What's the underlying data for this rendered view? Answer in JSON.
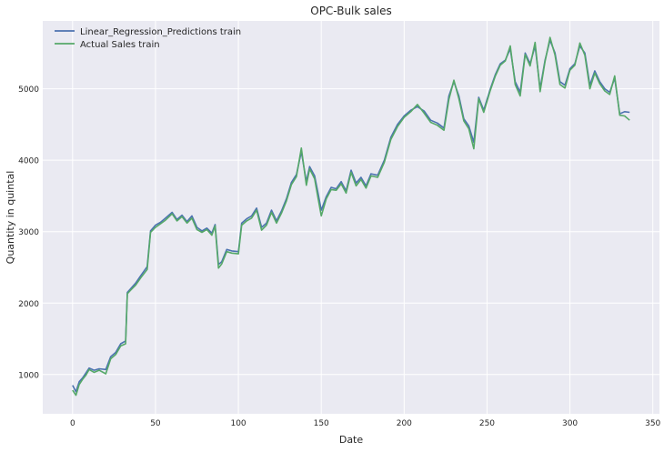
{
  "chart_data": {
    "type": "line",
    "title": "OPC-Bulk sales",
    "xlabel": "Date",
    "ylabel": "Quantity in quintal",
    "xlim": [
      -18,
      354
    ],
    "ylim": [
      450,
      5950
    ],
    "x_ticks": [
      0,
      50,
      100,
      150,
      200,
      250,
      300,
      350
    ],
    "y_ticks": [
      1000,
      2000,
      3000,
      4000,
      5000
    ],
    "x_tick_labels": [
      "0",
      "50",
      "100",
      "150",
      "200",
      "250",
      "300",
      "350"
    ],
    "y_tick_labels": [
      "1000",
      "2000",
      "3000",
      "4000",
      "5000"
    ],
    "grid": true,
    "legend_position": "top-left",
    "series": [
      {
        "name": "Linear_Regression_Predictions train",
        "color": "#4c72b0",
        "points": [
          [
            0,
            850
          ],
          [
            2,
            760
          ],
          [
            4,
            900
          ],
          [
            6,
            950
          ],
          [
            8,
            1020
          ],
          [
            10,
            1090
          ],
          [
            13,
            1060
          ],
          [
            16,
            1080
          ],
          [
            20,
            1070
          ],
          [
            23,
            1250
          ],
          [
            26,
            1310
          ],
          [
            29,
            1430
          ],
          [
            32,
            1470
          ],
          [
            33,
            2150
          ],
          [
            35,
            2200
          ],
          [
            38,
            2280
          ],
          [
            41,
            2380
          ],
          [
            45,
            2510
          ],
          [
            47,
            3010
          ],
          [
            50,
            3090
          ],
          [
            53,
            3130
          ],
          [
            56,
            3190
          ],
          [
            60,
            3270
          ],
          [
            63,
            3170
          ],
          [
            66,
            3230
          ],
          [
            69,
            3140
          ],
          [
            72,
            3220
          ],
          [
            75,
            3060
          ],
          [
            78,
            3010
          ],
          [
            81,
            3050
          ],
          [
            84,
            2980
          ],
          [
            86,
            3100
          ],
          [
            88,
            2540
          ],
          [
            90,
            2580
          ],
          [
            93,
            2750
          ],
          [
            96,
            2730
          ],
          [
            100,
            2720
          ],
          [
            102,
            3120
          ],
          [
            105,
            3180
          ],
          [
            108,
            3220
          ],
          [
            111,
            3330
          ],
          [
            114,
            3060
          ],
          [
            117,
            3120
          ],
          [
            120,
            3300
          ],
          [
            123,
            3150
          ],
          [
            126,
            3290
          ],
          [
            129,
            3460
          ],
          [
            132,
            3690
          ],
          [
            135,
            3800
          ],
          [
            138,
            4120
          ],
          [
            141,
            3700
          ],
          [
            143,
            3910
          ],
          [
            146,
            3780
          ],
          [
            148,
            3550
          ],
          [
            150,
            3300
          ],
          [
            153,
            3490
          ],
          [
            156,
            3620
          ],
          [
            159,
            3600
          ],
          [
            162,
            3700
          ],
          [
            165,
            3570
          ],
          [
            168,
            3860
          ],
          [
            171,
            3680
          ],
          [
            174,
            3760
          ],
          [
            177,
            3640
          ],
          [
            180,
            3810
          ],
          [
            184,
            3790
          ],
          [
            188,
            4000
          ],
          [
            192,
            4320
          ],
          [
            196,
            4500
          ],
          [
            200,
            4620
          ],
          [
            204,
            4700
          ],
          [
            208,
            4750
          ],
          [
            212,
            4690
          ],
          [
            216,
            4560
          ],
          [
            220,
            4520
          ],
          [
            224,
            4450
          ],
          [
            227,
            4900
          ],
          [
            230,
            5100
          ],
          [
            233,
            4900
          ],
          [
            236,
            4580
          ],
          [
            239,
            4480
          ],
          [
            242,
            4250
          ],
          [
            245,
            4880
          ],
          [
            248,
            4700
          ],
          [
            252,
            5000
          ],
          [
            255,
            5200
          ],
          [
            258,
            5350
          ],
          [
            261,
            5400
          ],
          [
            264,
            5560
          ],
          [
            267,
            5100
          ],
          [
            270,
            4950
          ],
          [
            273,
            5500
          ],
          [
            276,
            5350
          ],
          [
            279,
            5600
          ],
          [
            282,
            5000
          ],
          [
            285,
            5400
          ],
          [
            288,
            5680
          ],
          [
            291,
            5500
          ],
          [
            294,
            5100
          ],
          [
            297,
            5050
          ],
          [
            300,
            5280
          ],
          [
            303,
            5350
          ],
          [
            306,
            5600
          ],
          [
            309,
            5500
          ],
          [
            312,
            5050
          ],
          [
            315,
            5250
          ],
          [
            318,
            5100
          ],
          [
            321,
            5000
          ],
          [
            324,
            4950
          ],
          [
            327,
            5150
          ],
          [
            330,
            4650
          ],
          [
            333,
            4680
          ],
          [
            336,
            4670
          ]
        ]
      },
      {
        "name": "Actual Sales train",
        "color": "#55a868",
        "points": [
          [
            0,
            780
          ],
          [
            2,
            710
          ],
          [
            4,
            860
          ],
          [
            6,
            930
          ],
          [
            8,
            990
          ],
          [
            10,
            1070
          ],
          [
            13,
            1030
          ],
          [
            16,
            1060
          ],
          [
            20,
            1010
          ],
          [
            23,
            1220
          ],
          [
            26,
            1280
          ],
          [
            29,
            1400
          ],
          [
            32,
            1430
          ],
          [
            33,
            2130
          ],
          [
            35,
            2180
          ],
          [
            38,
            2250
          ],
          [
            41,
            2350
          ],
          [
            45,
            2470
          ],
          [
            47,
            2990
          ],
          [
            50,
            3060
          ],
          [
            53,
            3110
          ],
          [
            56,
            3160
          ],
          [
            60,
            3250
          ],
          [
            63,
            3150
          ],
          [
            66,
            3210
          ],
          [
            69,
            3120
          ],
          [
            72,
            3190
          ],
          [
            75,
            3030
          ],
          [
            78,
            2990
          ],
          [
            81,
            3030
          ],
          [
            84,
            2950
          ],
          [
            86,
            3080
          ],
          [
            88,
            2490
          ],
          [
            90,
            2550
          ],
          [
            93,
            2720
          ],
          [
            96,
            2700
          ],
          [
            100,
            2690
          ],
          [
            102,
            3090
          ],
          [
            105,
            3150
          ],
          [
            108,
            3190
          ],
          [
            111,
            3300
          ],
          [
            114,
            3020
          ],
          [
            117,
            3090
          ],
          [
            120,
            3270
          ],
          [
            123,
            3120
          ],
          [
            126,
            3260
          ],
          [
            129,
            3430
          ],
          [
            132,
            3660
          ],
          [
            135,
            3770
          ],
          [
            138,
            4170
          ],
          [
            141,
            3650
          ],
          [
            143,
            3880
          ],
          [
            146,
            3740
          ],
          [
            148,
            3480
          ],
          [
            150,
            3220
          ],
          [
            153,
            3460
          ],
          [
            156,
            3590
          ],
          [
            159,
            3580
          ],
          [
            162,
            3670
          ],
          [
            165,
            3540
          ],
          [
            168,
            3830
          ],
          [
            171,
            3640
          ],
          [
            174,
            3730
          ],
          [
            177,
            3610
          ],
          [
            180,
            3780
          ],
          [
            184,
            3760
          ],
          [
            188,
            3970
          ],
          [
            192,
            4290
          ],
          [
            196,
            4470
          ],
          [
            200,
            4600
          ],
          [
            204,
            4680
          ],
          [
            208,
            4780
          ],
          [
            212,
            4660
          ],
          [
            216,
            4530
          ],
          [
            220,
            4490
          ],
          [
            224,
            4420
          ],
          [
            227,
            4850
          ],
          [
            230,
            5120
          ],
          [
            233,
            4860
          ],
          [
            236,
            4550
          ],
          [
            239,
            4440
          ],
          [
            242,
            4160
          ],
          [
            245,
            4860
          ],
          [
            248,
            4670
          ],
          [
            252,
            4980
          ],
          [
            255,
            5180
          ],
          [
            258,
            5330
          ],
          [
            261,
            5390
          ],
          [
            264,
            5600
          ],
          [
            267,
            5060
          ],
          [
            270,
            4900
          ],
          [
            273,
            5480
          ],
          [
            276,
            5320
          ],
          [
            279,
            5650
          ],
          [
            282,
            4960
          ],
          [
            285,
            5380
          ],
          [
            288,
            5720
          ],
          [
            291,
            5470
          ],
          [
            294,
            5060
          ],
          [
            297,
            5010
          ],
          [
            300,
            5260
          ],
          [
            303,
            5330
          ],
          [
            306,
            5640
          ],
          [
            309,
            5470
          ],
          [
            312,
            5000
          ],
          [
            315,
            5220
          ],
          [
            318,
            5070
          ],
          [
            321,
            4970
          ],
          [
            324,
            4920
          ],
          [
            327,
            5180
          ],
          [
            330,
            4630
          ],
          [
            333,
            4620
          ],
          [
            336,
            4560
          ]
        ]
      }
    ]
  }
}
